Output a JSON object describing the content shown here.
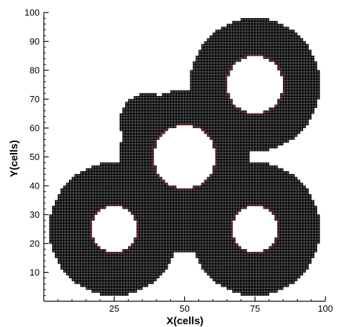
{
  "chart_data": {
    "type": "scatter",
    "title": "",
    "xlabel": "X(cells)",
    "ylabel": "Y(cells)",
    "xlim": [
      0,
      100
    ],
    "ylim": [
      0,
      100
    ],
    "x_ticks": [
      25,
      50,
      75,
      100
    ],
    "y_ticks": [
      10,
      20,
      30,
      40,
      50,
      60,
      70,
      80,
      90,
      100
    ],
    "grid": false,
    "legend": "none",
    "description_shape": "mesh of refined cells forming a ring-like band around four circular holes",
    "cell_size": 1,
    "mesh_outer_envelope": [
      {
        "center": [
          25,
          25
        ],
        "radius": 23
      },
      {
        "center": [
          75,
          25
        ],
        "radius": 23
      },
      {
        "center": [
          50,
          50
        ],
        "radius": 23
      },
      {
        "center": [
          75,
          75
        ],
        "radius": 23
      },
      {
        "center": [
          50,
          25
        ],
        "radius": 8
      },
      {
        "center": [
          62,
          62
        ],
        "radius": 12
      },
      {
        "center": [
          37,
          62
        ],
        "radius": 10
      }
    ],
    "holes": [
      {
        "center": [
          25,
          25
        ],
        "radius": 8
      },
      {
        "center": [
          75,
          25
        ],
        "radius": 8
      },
      {
        "center": [
          50,
          50
        ],
        "radius": 11
      },
      {
        "center": [
          75,
          75
        ],
        "radius": 10
      }
    ],
    "colors": {
      "mesh": "#000000",
      "interface": "#b22222",
      "background": "#ffffff"
    }
  }
}
